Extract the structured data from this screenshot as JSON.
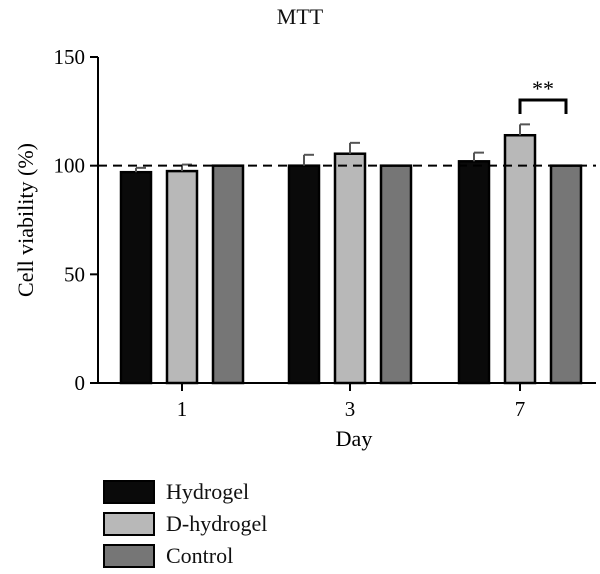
{
  "colors": {
    "Hydrogel": "#0a0a0a",
    "D-hydrogel": "#b8b8b8",
    "Control": "#767676",
    "axis": "#000000"
  },
  "chart_data": {
    "type": "bar",
    "title": "MTT",
    "xlabel": "Day",
    "ylabel": "Cell viability (%)",
    "ylim": [
      0,
      150
    ],
    "yticks": [
      "0",
      "50",
      "100",
      "150"
    ],
    "categories": [
      "1",
      "3",
      "7"
    ],
    "series": [
      {
        "name": "Hydrogel",
        "values": [
          97,
          100,
          102
        ],
        "errors": [
          2,
          5,
          4
        ]
      },
      {
        "name": "D-hydrogel",
        "values": [
          97.5,
          105.5,
          114
        ],
        "errors": [
          3,
          5,
          5
        ]
      },
      {
        "name": "Control",
        "values": [
          100,
          100,
          100
        ],
        "errors": [
          0,
          0,
          0
        ]
      }
    ],
    "reference_line": 100,
    "significance": {
      "category": "7",
      "between": [
        "D-hydrogel",
        "Control"
      ],
      "label": "**"
    },
    "legend_position": "bottom-left",
    "grid": false
  }
}
